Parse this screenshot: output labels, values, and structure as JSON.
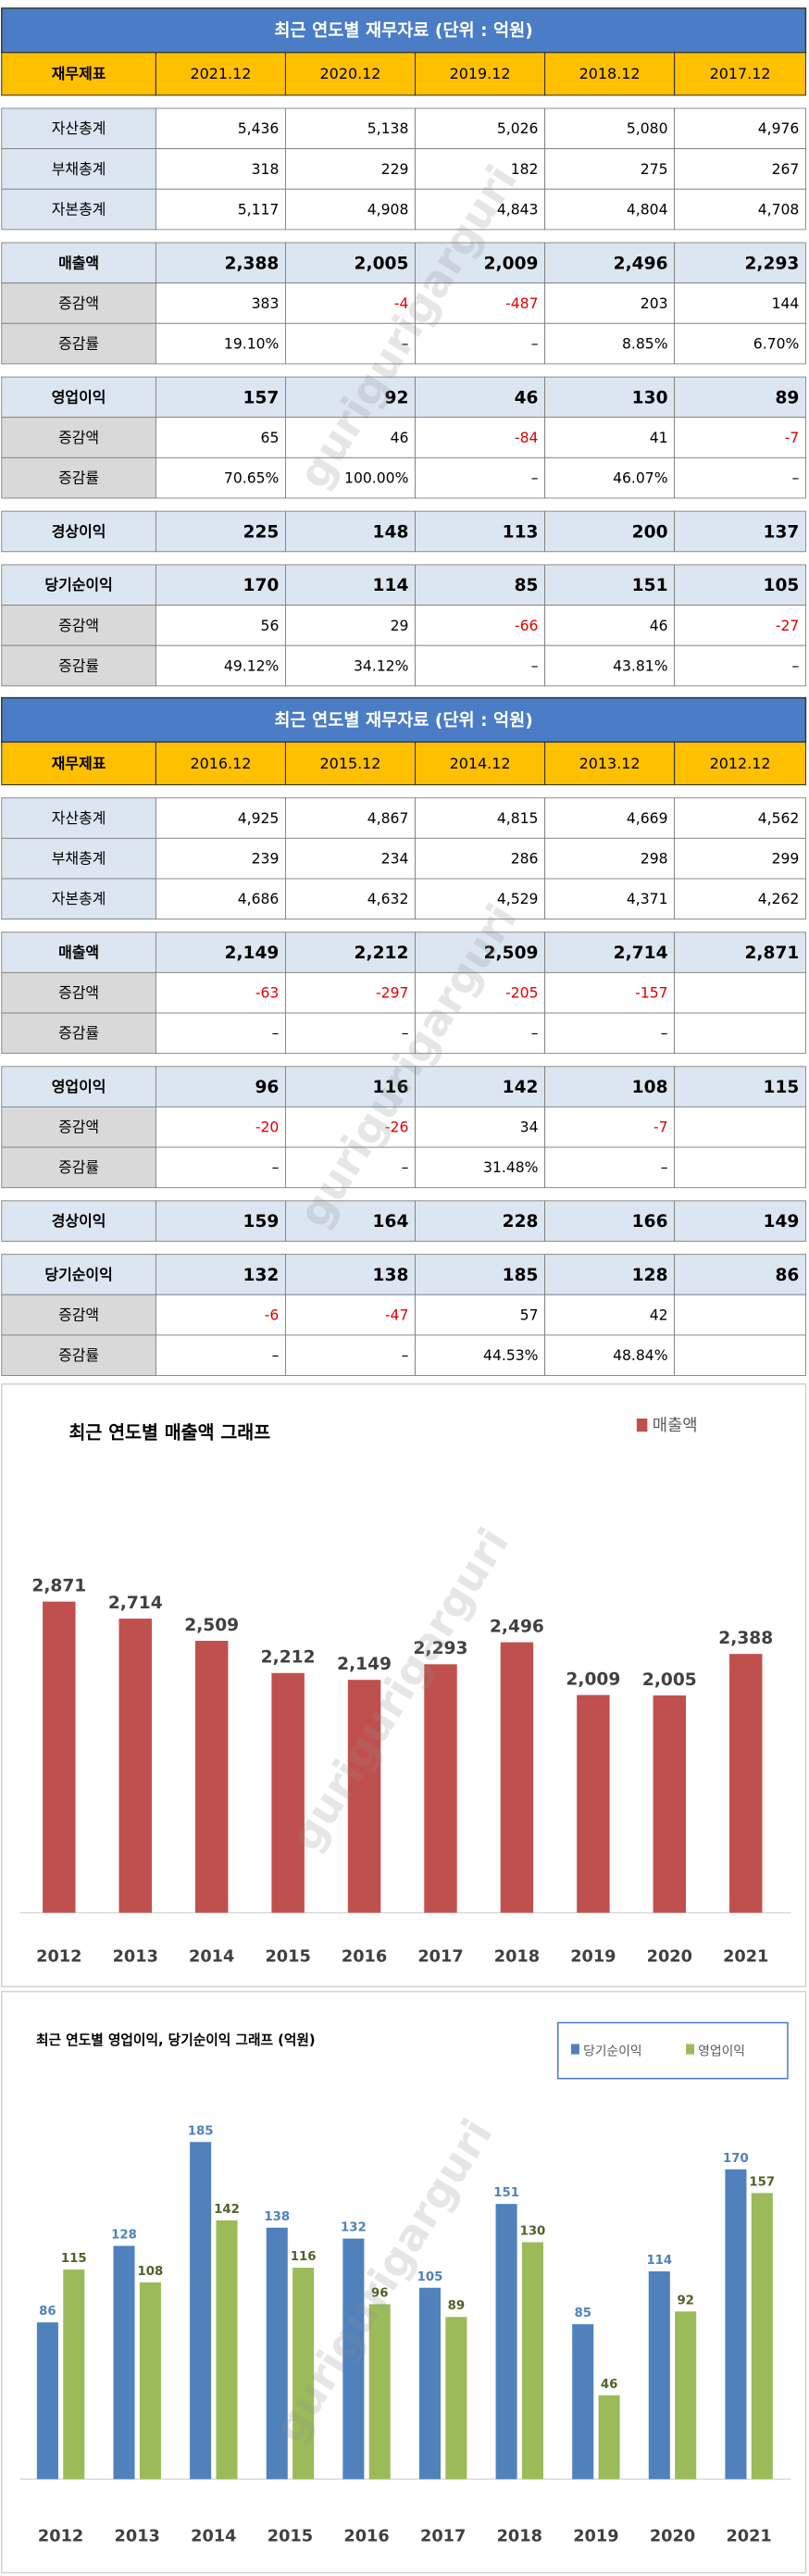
{
  "watermark": "gurigurigarguri",
  "tables": [
    {
      "title": "최근 연도별 재무자료 (단위 : 억원)",
      "header": [
        "재무제표",
        "2021.12",
        "2020.12",
        "2019.12",
        "2018.12",
        "2017.12"
      ],
      "rows": [
        [
          "자산총계",
          "5,436",
          "5,138",
          "5,026",
          "5,080",
          "4,976"
        ],
        [
          "부채총계",
          "318",
          "229",
          "182",
          "275",
          "267"
        ],
        [
          "자본총계",
          "5,117",
          "4,908",
          "4,843",
          "4,804",
          "4,708"
        ],
        [
          "매출액",
          "2,388",
          "2,005",
          "2,009",
          "2,496",
          "2,293"
        ],
        [
          "증감액",
          "383",
          "-4",
          "-487",
          "203",
          "144"
        ],
        [
          "증감률",
          "19.10%",
          "–",
          "–",
          "8.85%",
          "6.70%"
        ],
        [
          "영업이익",
          "157",
          "92",
          "46",
          "130",
          "89"
        ],
        [
          "증감액",
          "65",
          "46",
          "-84",
          "41",
          "-7"
        ],
        [
          "증감률",
          "70.65%",
          "100.00%",
          "–",
          "46.07%",
          "–"
        ],
        [
          "경상이익",
          "225",
          "148",
          "113",
          "200",
          "137"
        ],
        [
          "당기순이익",
          "170",
          "114",
          "85",
          "151",
          "105"
        ],
        [
          "증감액",
          "56",
          "29",
          "-66",
          "46",
          "-27"
        ],
        [
          "증감률",
          "49.12%",
          "34.12%",
          "–",
          "43.81%",
          "–"
        ]
      ]
    },
    {
      "title": "최근 연도별 재무자료 (단위 : 억원)",
      "header": [
        "재무제표",
        "2016.12",
        "2015.12",
        "2014.12",
        "2013.12",
        "2012.12"
      ],
      "rows": [
        [
          "자산총계",
          "4,925",
          "4,867",
          "4,815",
          "4,669",
          "4,562"
        ],
        [
          "부채총계",
          "239",
          "234",
          "286",
          "298",
          "299"
        ],
        [
          "자본총계",
          "4,686",
          "4,632",
          "4,529",
          "4,371",
          "4,262"
        ],
        [
          "매출액",
          "2,149",
          "2,212",
          "2,509",
          "2,714",
          "2,871"
        ],
        [
          "증감액",
          "-63",
          "-297",
          "-205",
          "-157",
          null
        ],
        [
          "증감률",
          "–",
          "–",
          "–",
          "–",
          null
        ],
        [
          "영업이익",
          "96",
          "116",
          "142",
          "108",
          "115"
        ],
        [
          "증감액",
          "-20",
          "-26",
          "34",
          "-7",
          null
        ],
        [
          "증감률",
          "–",
          "–",
          "31.48%",
          "–",
          null
        ],
        [
          "경상이익",
          "159",
          "164",
          "228",
          "166",
          "149"
        ],
        [
          "당기순이익",
          "132",
          "138",
          "185",
          "128",
          "86"
        ],
        [
          "증감액",
          "-6",
          "-47",
          "57",
          "42",
          null
        ],
        [
          "증감률",
          "–",
          "–",
          "44.53%",
          "48.84%",
          null
        ]
      ]
    }
  ],
  "chart_data": [
    {
      "type": "bar",
      "title": "최근 연도별 매출액 그래프",
      "categories": [
        "2012",
        "2013",
        "2014",
        "2015",
        "2016",
        "2017",
        "2018",
        "2019",
        "2020",
        "2021"
      ],
      "series": [
        {
          "name": "매출액",
          "color": "#c0504d",
          "label_color": "#404040",
          "values": [
            2871,
            2714,
            2509,
            2212,
            2149,
            2293,
            2496,
            2009,
            2005,
            2388
          ],
          "value_labels": [
            "2,871",
            "2,714",
            "2,509",
            "2,212",
            "2,149",
            "2,293",
            "2,496",
            "2,009",
            "2,005",
            "2,388"
          ]
        }
      ],
      "ylim": [
        0,
        3500
      ]
    },
    {
      "type": "bar",
      "title": "최근 연도별 영업이익, 당기순이익 그래프 (억원)",
      "categories": [
        "2012",
        "2013",
        "2014",
        "2015",
        "2016",
        "2017",
        "2018",
        "2019",
        "2020",
        "2021"
      ],
      "series": [
        {
          "name": "당기순이익",
          "color": "#4f81bd",
          "label_color": "#4f81bd",
          "values": [
            86,
            128,
            185,
            138,
            132,
            105,
            151,
            85,
            114,
            170
          ]
        },
        {
          "name": "영업이익",
          "color": "#9bbb59",
          "label_color": "#4f6228",
          "values": [
            115,
            108,
            142,
            116,
            96,
            89,
            130,
            46,
            92,
            157
          ]
        }
      ],
      "ylim": [
        0,
        200
      ]
    }
  ]
}
